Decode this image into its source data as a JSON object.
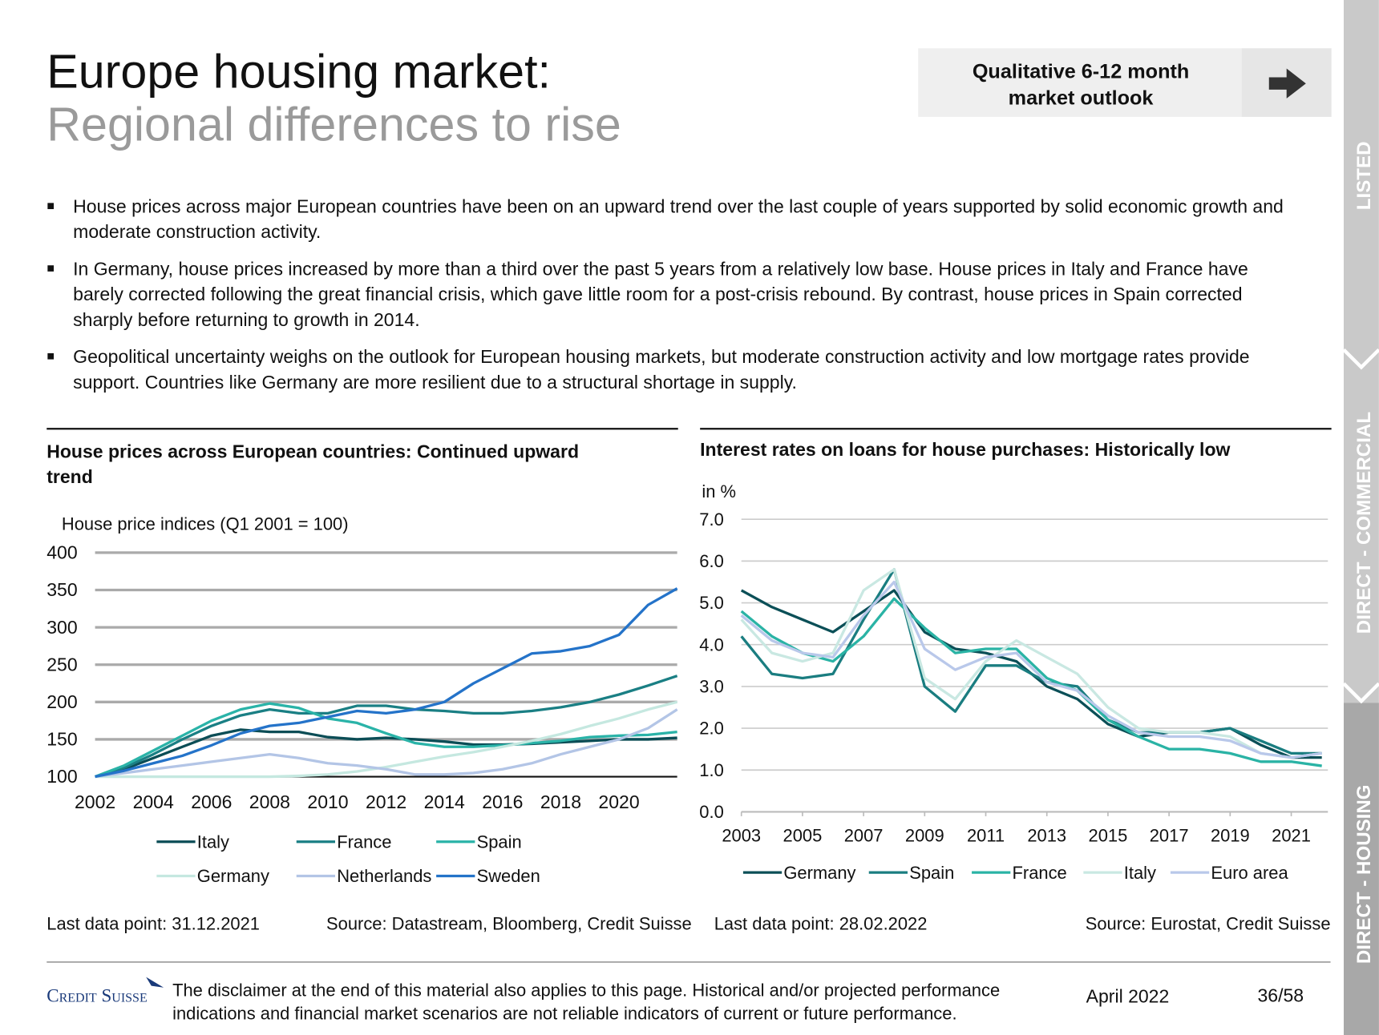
{
  "header": {
    "title": "Europe housing market:",
    "subtitle": "Regional differences to rise"
  },
  "outlook_button": {
    "lines": [
      "Qualitative 6-12 month",
      "market outlook"
    ]
  },
  "bullets": [
    [
      "House prices across major European countries have been on an upward trend over the last couple of years supported by solid economic growth and",
      "moderate construction activity."
    ],
    [
      "In Germany, house prices increased by more than a third over the past 5 years from a relatively low base. House prices in Italy and France have",
      "barely corrected following the great financial crisis, which gave little room for a post-crisis rebound. By contrast, house prices in Spain corrected",
      "sharply before returning to growth in 2014."
    ],
    [
      "Geopolitical uncertainty weighs on the outlook for European housing markets, but moderate construction activity and low mortgage rates provide",
      "support. Countries like Germany are more resilient due to a structural shortage in supply."
    ]
  ],
  "side_tabs": [
    "LISTED",
    "DIRECT - COMMERCIAL",
    "DIRECT - HOUSING"
  ],
  "chart_data": [
    {
      "type": "line",
      "title": [
        "House prices across European countries: Continued upward",
        "trend"
      ],
      "ylabel": "House price indices (Q1 2001 = 100)",
      "x": [
        2002,
        2003,
        2004,
        2005,
        2006,
        2007,
        2008,
        2009,
        2010,
        2011,
        2012,
        2013,
        2014,
        2015,
        2016,
        2017,
        2018,
        2019,
        2020,
        2021,
        2022
      ],
      "xlim": [
        2002,
        2022
      ],
      "xticks": [
        2002,
        2004,
        2006,
        2008,
        2010,
        2012,
        2014,
        2016,
        2018,
        2020
      ],
      "ylim": [
        100,
        400
      ],
      "yticks": [
        100,
        150,
        200,
        250,
        300,
        350,
        400
      ],
      "grid": true,
      "series": [
        {
          "name": "Italy",
          "color": "#0b4d56",
          "values": [
            100,
            110,
            125,
            140,
            155,
            163,
            160,
            160,
            153,
            150,
            152,
            150,
            147,
            143,
            143,
            144,
            146,
            148,
            150,
            150,
            152
          ]
        },
        {
          "name": "France",
          "color": "#1a7f84",
          "values": [
            100,
            112,
            130,
            150,
            168,
            182,
            190,
            185,
            185,
            195,
            195,
            190,
            188,
            185,
            185,
            188,
            193,
            200,
            210,
            222,
            235
          ]
        },
        {
          "name": "Spain",
          "color": "#2ab3a8",
          "values": [
            100,
            115,
            135,
            155,
            175,
            190,
            198,
            192,
            178,
            172,
            158,
            145,
            140,
            140,
            142,
            145,
            148,
            153,
            155,
            156,
            160
          ]
        },
        {
          "name": "Germany",
          "color": "#c5e8e0",
          "values": [
            100,
            100,
            100,
            100,
            100,
            100,
            100,
            101,
            103,
            107,
            113,
            120,
            127,
            133,
            140,
            148,
            157,
            168,
            178,
            190,
            200
          ]
        },
        {
          "name": "Netherlands",
          "color": "#b3c5e6",
          "values": [
            100,
            105,
            110,
            115,
            120,
            125,
            130,
            125,
            118,
            115,
            110,
            103,
            103,
            105,
            110,
            118,
            130,
            140,
            150,
            165,
            190
          ]
        },
        {
          "name": "Sweden",
          "color": "#2473c9",
          "values": [
            100,
            108,
            118,
            128,
            142,
            158,
            168,
            172,
            180,
            188,
            185,
            190,
            200,
            225,
            245,
            265,
            268,
            275,
            290,
            330,
            352
          ]
        }
      ],
      "note": "Last data point: 31.12.2021",
      "source": "Source: Datastream, Bloomberg, Credit Suisse"
    },
    {
      "type": "line",
      "title": [
        "Interest rates on loans for house purchases: Historically low"
      ],
      "ylabel": "in %",
      "x": [
        2003,
        2004,
        2005,
        2006,
        2007,
        2008,
        2009,
        2010,
        2011,
        2012,
        2013,
        2014,
        2015,
        2016,
        2017,
        2018,
        2019,
        2020,
        2021,
        2022
      ],
      "xlim": [
        2003,
        2022.2
      ],
      "xticks": [
        2003,
        2005,
        2007,
        2009,
        2011,
        2013,
        2015,
        2017,
        2019,
        2021
      ],
      "ylim": [
        0,
        7
      ],
      "yticks": [
        {
          "value": 0,
          "label": "0.0"
        },
        {
          "value": 1,
          "label": "1.0"
        },
        {
          "value": 2,
          "label": "2.0"
        },
        {
          "value": 3,
          "label": "3.0"
        },
        {
          "value": 4,
          "label": "4.0"
        },
        {
          "value": 5,
          "label": "5.0"
        },
        {
          "value": 6,
          "label": "6.0"
        },
        {
          "value": 7,
          "label": "7.0"
        }
      ],
      "grid": true,
      "series": [
        {
          "name": "Germany",
          "color": "#0b4f57",
          "values": [
            5.3,
            4.9,
            4.6,
            4.3,
            4.8,
            5.3,
            4.3,
            3.9,
            3.8,
            3.6,
            3.0,
            2.7,
            2.1,
            1.8,
            1.9,
            1.9,
            2.0,
            1.6,
            1.3,
            1.3
          ]
        },
        {
          "name": "Spain",
          "color": "#1a7d80",
          "values": [
            4.2,
            3.3,
            3.2,
            3.3,
            4.6,
            5.8,
            3.0,
            2.4,
            3.5,
            3.5,
            3.1,
            3.0,
            2.2,
            1.9,
            1.9,
            1.9,
            2.0,
            1.7,
            1.4,
            1.4
          ]
        },
        {
          "name": "France",
          "color": "#2ab3a5",
          "values": [
            4.8,
            4.2,
            3.8,
            3.6,
            4.2,
            5.1,
            4.4,
            3.8,
            3.9,
            3.9,
            3.2,
            2.9,
            2.2,
            1.8,
            1.5,
            1.5,
            1.4,
            1.2,
            1.2,
            1.1
          ]
        },
        {
          "name": "Italy",
          "color": "#c9e8e2",
          "values": [
            4.6,
            3.8,
            3.6,
            3.8,
            5.3,
            5.8,
            3.2,
            2.7,
            3.6,
            4.1,
            3.7,
            3.3,
            2.5,
            2.0,
            1.9,
            1.9,
            1.8,
            1.4,
            1.3,
            1.4
          ]
        },
        {
          "name": "Euro area",
          "color": "#b9c8ea",
          "values": [
            4.7,
            4.1,
            3.8,
            3.7,
            4.7,
            5.5,
            3.9,
            3.4,
            3.7,
            3.8,
            3.1,
            2.9,
            2.3,
            1.9,
            1.8,
            1.8,
            1.7,
            1.4,
            1.3,
            1.4
          ]
        }
      ],
      "note": "Last data point: 28.02.2022",
      "source": "Source: Eurostat, Credit Suisse"
    }
  ],
  "footer": {
    "logo": "Credit Suisse",
    "disclaimer": [
      "The disclaimer at the end of this material also applies to this page. Historical and/or projected performance",
      "indications and financial market scenarios are not reliable indicators of current or future performance."
    ],
    "date": "April 2022",
    "page": "36/58"
  }
}
